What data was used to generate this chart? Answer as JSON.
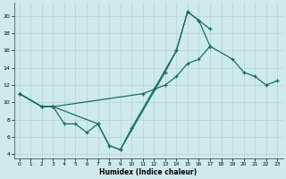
{
  "xlabel": "Humidex (Indice chaleur)",
  "xlim": [
    -0.5,
    23.5
  ],
  "ylim": [
    3.5,
    21.5
  ],
  "yticks": [
    4,
    6,
    8,
    10,
    12,
    14,
    16,
    18,
    20
  ],
  "xticks": [
    0,
    1,
    2,
    3,
    4,
    5,
    6,
    7,
    8,
    9,
    10,
    11,
    12,
    13,
    14,
    15,
    16,
    17,
    18,
    19,
    20,
    21,
    22,
    23
  ],
  "background_color": "#ceeaea",
  "grid_color": "#b8d8d8",
  "line_color": "#1a6b6b",
  "lines": [
    {
      "x": [
        0,
        2,
        3,
        4,
        5,
        6,
        7,
        8,
        9,
        10,
        14,
        15,
        16,
        17
      ],
      "y": [
        11,
        9.5,
        9.5,
        7.5,
        7.5,
        6.5,
        7.5,
        5,
        4.5,
        7,
        16,
        20.5,
        19.5,
        16.5
      ]
    },
    {
      "x": [
        0,
        2,
        3,
        7,
        8,
        9,
        13,
        14,
        15,
        16,
        17
      ],
      "y": [
        11,
        9.5,
        9.5,
        7.5,
        5,
        4.5,
        13.5,
        16,
        20.5,
        19.5,
        18.5
      ]
    },
    {
      "x": [
        0,
        2,
        3,
        11,
        12,
        13,
        14,
        15,
        16,
        17,
        19,
        20,
        21,
        22,
        23
      ],
      "y": [
        11,
        9.5,
        9.5,
        11,
        11.5,
        12,
        13,
        14.5,
        15,
        16.5,
        15,
        13.5,
        13,
        12,
        12.5
      ]
    }
  ]
}
